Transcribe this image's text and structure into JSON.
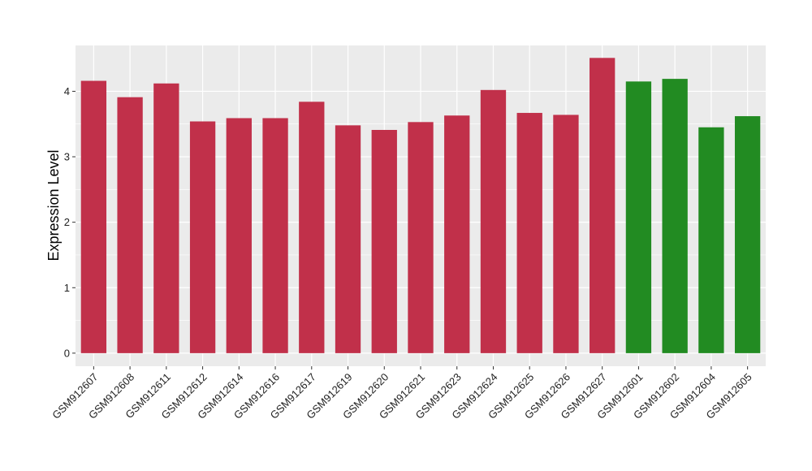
{
  "chart_data": {
    "type": "bar",
    "title": "",
    "xlabel": "",
    "ylabel": "Expression Level",
    "ylim": [
      -0.2,
      4.7
    ],
    "yticks": [
      0,
      1,
      2,
      3,
      4
    ],
    "grid": true,
    "legend": "none",
    "categories": [
      "GSM912607",
      "GSM912608",
      "GSM912611",
      "GSM912612",
      "GSM912614",
      "GSM912616",
      "GSM912617",
      "GSM912619",
      "GSM912620",
      "GSM912621",
      "GSM912623",
      "GSM912624",
      "GSM912625",
      "GSM912626",
      "GSM912627",
      "GSM912601",
      "GSM912602",
      "GSM912604",
      "GSM912605"
    ],
    "values": [
      4.16,
      3.91,
      4.12,
      3.54,
      3.59,
      3.59,
      3.84,
      3.48,
      3.41,
      3.53,
      3.63,
      4.02,
      3.67,
      3.64,
      4.51,
      4.15,
      4.19,
      3.45,
      3.62
    ],
    "bar_colors": [
      "#c1304a",
      "#c1304a",
      "#c1304a",
      "#c1304a",
      "#c1304a",
      "#c1304a",
      "#c1304a",
      "#c1304a",
      "#c1304a",
      "#c1304a",
      "#c1304a",
      "#c1304a",
      "#c1304a",
      "#c1304a",
      "#c1304a",
      "#228b22",
      "#228b22",
      "#228b22",
      "#228b22"
    ],
    "colors": {
      "panel_background": "#ebebeb",
      "grid": "#ffffff",
      "axis_text": "#222222"
    }
  }
}
